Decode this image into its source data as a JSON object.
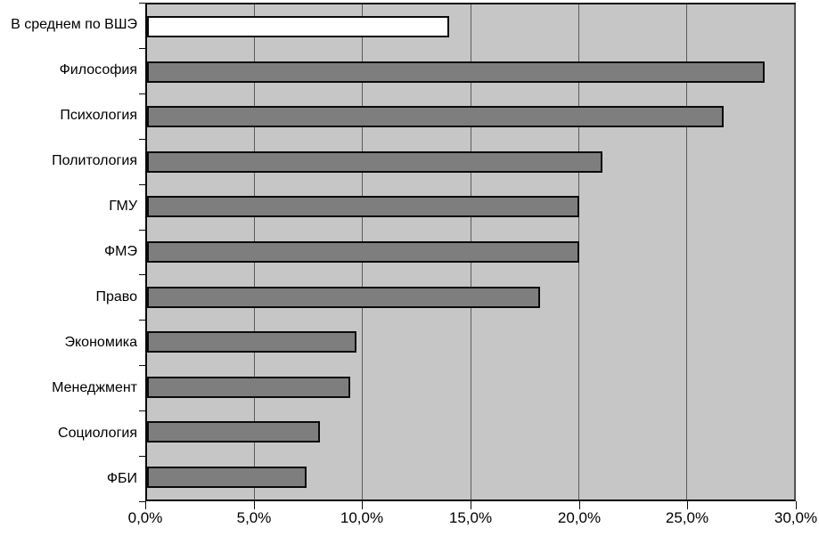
{
  "chart_data": {
    "type": "bar",
    "orientation": "horizontal",
    "title": "",
    "xlabel": "",
    "ylabel": "",
    "categories": [
      "В среднем по ВШЭ",
      "Философия",
      "Психология",
      "Политология",
      "ГМУ",
      "ФМЭ",
      "Право",
      "Экономика",
      "Менеджмент",
      "Социология",
      "ФБИ"
    ],
    "values": [
      14.0,
      28.6,
      26.7,
      21.1,
      20.0,
      20.0,
      18.2,
      9.7,
      9.4,
      8.0,
      7.4
    ],
    "bar_colors": [
      "#ffffff",
      "#7e7e7e",
      "#7e7e7e",
      "#7e7e7e",
      "#7e7e7e",
      "#7e7e7e",
      "#7e7e7e",
      "#7e7e7e",
      "#7e7e7e",
      "#7e7e7e",
      "#7e7e7e"
    ],
    "highlight_category": "В среднем по ВШЭ",
    "xlim": [
      0,
      30
    ],
    "x_tick_labels": [
      "0,0%",
      "5,0%",
      "10,0%",
      "15,0%",
      "20,0%",
      "25,0%",
      "30,0%"
    ],
    "x_tick_values": [
      0,
      5,
      10,
      15,
      20,
      25,
      30
    ],
    "grid": true,
    "legend": null,
    "colors": {
      "plot_background": "#c6c6c6",
      "bar_fill": "#7e7e7e",
      "bar_border": "#0a0a0a",
      "gridline": "#5b5b5b",
      "text": "#000000",
      "page_background": "#ffffff"
    }
  }
}
